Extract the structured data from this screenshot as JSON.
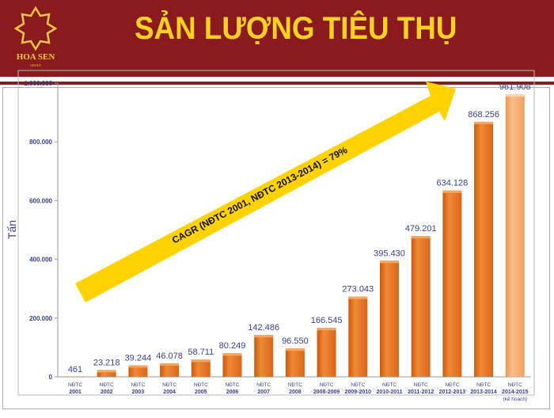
{
  "header": {
    "title": "SẢN LƯỢNG TIÊU THỤ",
    "logo_text": "HOA SEN",
    "logo_subtext": "GROUP",
    "background_color": "#8B1A1E",
    "title_color": "#FFD21F"
  },
  "chart_data": {
    "type": "bar",
    "title": "",
    "xlabel": "",
    "ylabel": "Tấn",
    "ylim": [
      0,
      1000000
    ],
    "yticks": [
      "0",
      "200.000",
      "400.000",
      "600.000",
      "800.000",
      "1.000.000"
    ],
    "ytick_values": [
      0,
      200000,
      400000,
      600000,
      800000,
      1000000
    ],
    "grid": false,
    "categories": [
      {
        "top": "NĐTC",
        "bottom": "2001"
      },
      {
        "top": "NĐTC",
        "bottom": "2002"
      },
      {
        "top": "NĐTC",
        "bottom": "2003"
      },
      {
        "top": "NĐTC",
        "bottom": "2004"
      },
      {
        "top": "NĐTC",
        "bottom": "2005"
      },
      {
        "top": "NĐTC",
        "bottom": "2006"
      },
      {
        "top": "NĐTC",
        "bottom": "2007"
      },
      {
        "top": "NĐTC",
        "bottom": "2008"
      },
      {
        "top": "NĐTC",
        "bottom": "2008-2009"
      },
      {
        "top": "NĐTC",
        "bottom": "2009-2010"
      },
      {
        "top": "NĐTC",
        "bottom": "2010-2011"
      },
      {
        "top": "NĐTC",
        "bottom": "2011-2012"
      },
      {
        "top": "NĐTC",
        "bottom": "2012-2013"
      },
      {
        "top": "NĐTC",
        "bottom": "2013-2014"
      },
      {
        "top": "NĐTC",
        "bottom": "2014-2015",
        "note": "(kế hoạch)"
      }
    ],
    "values": [
      461,
      23218,
      39244,
      46078,
      58711,
      80249,
      142486,
      96550,
      166545,
      273043,
      395430,
      479201,
      634128,
      868256,
      961908
    ],
    "data_labels": [
      "461",
      "23.218",
      "39.244",
      "46.078",
      "58.711",
      "80.249",
      "142.486",
      "96.550",
      "166.545",
      "273.043",
      "395.430",
      "479.201",
      "634.128",
      "868.256",
      "961.908"
    ],
    "colors": {
      "actual": "#E8731C",
      "plan": "#F6A766",
      "arrow": "#FFD200",
      "label": "#3B3F8F"
    },
    "annotation": "CAGR (NĐTC 2001, NĐTC 2013-2014) = 79%"
  }
}
